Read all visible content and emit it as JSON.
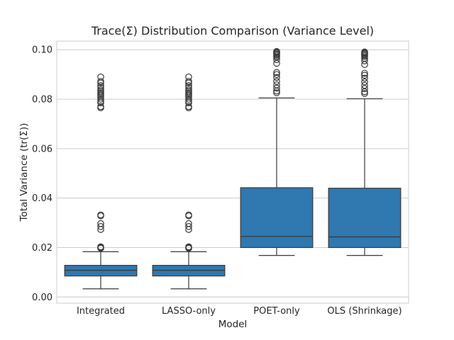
{
  "chart_data": {
    "type": "box",
    "title": "Trace(Σ) Distribution Comparison (Variance Level)",
    "xlabel": "Model",
    "ylabel": "Total Variance (tr(Σ))",
    "ylim": [
      -0.0025,
      0.1035
    ],
    "yticks": [
      0.0,
      0.02,
      0.04,
      0.06,
      0.08,
      0.1
    ],
    "ytick_labels": [
      "0.00",
      "0.02",
      "0.04",
      "0.06",
      "0.08",
      "0.10"
    ],
    "grid": true,
    "box_color": "#2f78b0",
    "line_color": "#3a3a3a",
    "categories": [
      "Integrated",
      "LASSO-only",
      "POET-only",
      "OLS (Shrinkage)"
    ],
    "boxes": [
      {
        "name": "Integrated",
        "whisker_low": 0.0033,
        "q1": 0.0085,
        "median": 0.0108,
        "q3": 0.0128,
        "whisker_high": 0.0183,
        "outliers": [
          0.0197,
          0.02,
          0.0203,
          0.0273,
          0.0285,
          0.0297,
          0.0328,
          0.0332,
          0.0765,
          0.077,
          0.0785,
          0.0792,
          0.08,
          0.0808,
          0.0815,
          0.082,
          0.0826,
          0.0832,
          0.0838,
          0.0846,
          0.0855,
          0.0866,
          0.0872,
          0.089
        ]
      },
      {
        "name": "LASSO-only",
        "whisker_low": 0.0033,
        "q1": 0.0085,
        "median": 0.0108,
        "q3": 0.0128,
        "whisker_high": 0.0183,
        "outliers": [
          0.0197,
          0.02,
          0.0203,
          0.0273,
          0.0285,
          0.0297,
          0.0328,
          0.0332,
          0.0765,
          0.077,
          0.0785,
          0.0792,
          0.08,
          0.0808,
          0.0815,
          0.082,
          0.0826,
          0.0832,
          0.0838,
          0.0846,
          0.0855,
          0.0866,
          0.0872,
          0.089
        ]
      },
      {
        "name": "POET-only",
        "whisker_low": 0.0168,
        "q1": 0.02,
        "median": 0.0245,
        "q3": 0.0442,
        "whisker_high": 0.0805,
        "outliers": [
          0.0826,
          0.0833,
          0.0845,
          0.0858,
          0.0872,
          0.0888,
          0.09,
          0.0908,
          0.0945,
          0.096,
          0.097,
          0.0975,
          0.098,
          0.0983,
          0.0987,
          0.099,
          0.0993
        ]
      },
      {
        "name": "OLS (Shrinkage)",
        "whisker_low": 0.0168,
        "q1": 0.02,
        "median": 0.0243,
        "q3": 0.044,
        "whisker_high": 0.0802,
        "outliers": [
          0.0823,
          0.083,
          0.0843,
          0.0856,
          0.087,
          0.0885,
          0.0897,
          0.0905,
          0.094,
          0.0955,
          0.0965,
          0.0972,
          0.0977,
          0.0981,
          0.0985,
          0.0988,
          0.0991
        ]
      }
    ]
  }
}
